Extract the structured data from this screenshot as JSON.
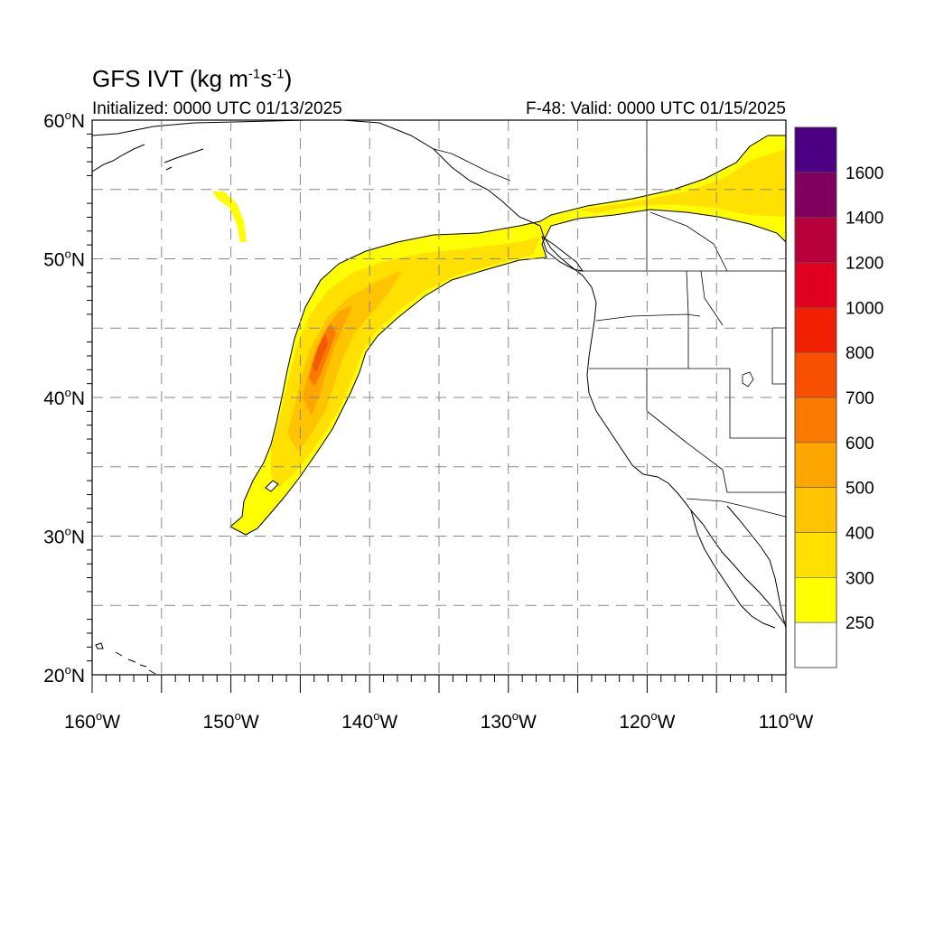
{
  "title": {
    "main": "GFS IVT (kg m",
    "sup1": "-1",
    "mid": "s",
    "sup2": "-1",
    "end": ")"
  },
  "subtitle_left": "Initialized: 0000 UTC 01/13/2025",
  "subtitle_right": "F-48: Valid: 0000 UTC 01/15/2025",
  "axes": {
    "lon_labels": [
      "160",
      "150",
      "140",
      "130",
      "120",
      "110"
    ],
    "lat_labels": [
      "60",
      "50",
      "40",
      "30",
      "20"
    ],
    "lon_suffix": "W",
    "lat_suffix": "N",
    "degree": "o"
  },
  "colorbar": {
    "labels": [
      "1600",
      "1400",
      "1200",
      "1000",
      "800",
      "700",
      "600",
      "500",
      "400",
      "300",
      "250"
    ],
    "colors": [
      "#4b0082",
      "#800060",
      "#b8003c",
      "#e00020",
      "#f02000",
      "#f85000",
      "#fa7a00",
      "#fda600",
      "#fec400",
      "#ffe000",
      "#ffff00",
      "#ffffff"
    ]
  },
  "plume_colors": {
    "low": "#ffff00",
    "mid": "#ffe000",
    "high": "#fec400",
    "peak1": "#fda600",
    "peak2": "#fa7a00",
    "peak3": "#f05a00"
  }
}
